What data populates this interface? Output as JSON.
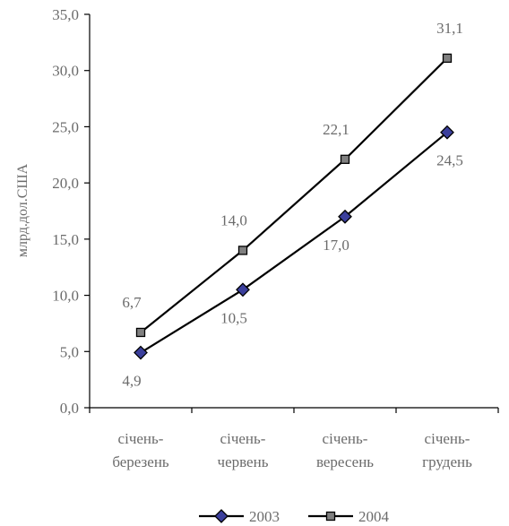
{
  "chart_data": {
    "type": "line",
    "categories": [
      [
        "січень-",
        "березень"
      ],
      [
        "січень-",
        "червень"
      ],
      [
        "січень-",
        "вересень"
      ],
      [
        "січень-",
        "грудень"
      ]
    ],
    "series": [
      {
        "name": "2003",
        "values": [
          4.9,
          10.5,
          17.0,
          24.5
        ],
        "labels": [
          "4,9",
          "10,5",
          "17,0",
          "24,5"
        ],
        "label_position": "below",
        "marker": "diamond",
        "marker_color": "#3b3f9c"
      },
      {
        "name": "2004",
        "values": [
          6.7,
          14.0,
          22.1,
          31.1
        ],
        "labels": [
          "6,7",
          "14,0",
          "22,1",
          "31,1"
        ],
        "label_position": "above",
        "marker": "square",
        "marker_color": "#808080"
      }
    ],
    "ylabel": "млрд.дол.США",
    "xlabel": "",
    "title": "",
    "ylim": [
      0,
      35
    ],
    "yticks": [
      0,
      5,
      10,
      15,
      20,
      25,
      30,
      35
    ],
    "ytick_labels": [
      "0,0",
      "5,0",
      "10,0",
      "15,0",
      "20,0",
      "25,0",
      "30,0",
      "35,0"
    ],
    "grid": false,
    "legend": "bottom-center",
    "line_color": "#000000"
  }
}
